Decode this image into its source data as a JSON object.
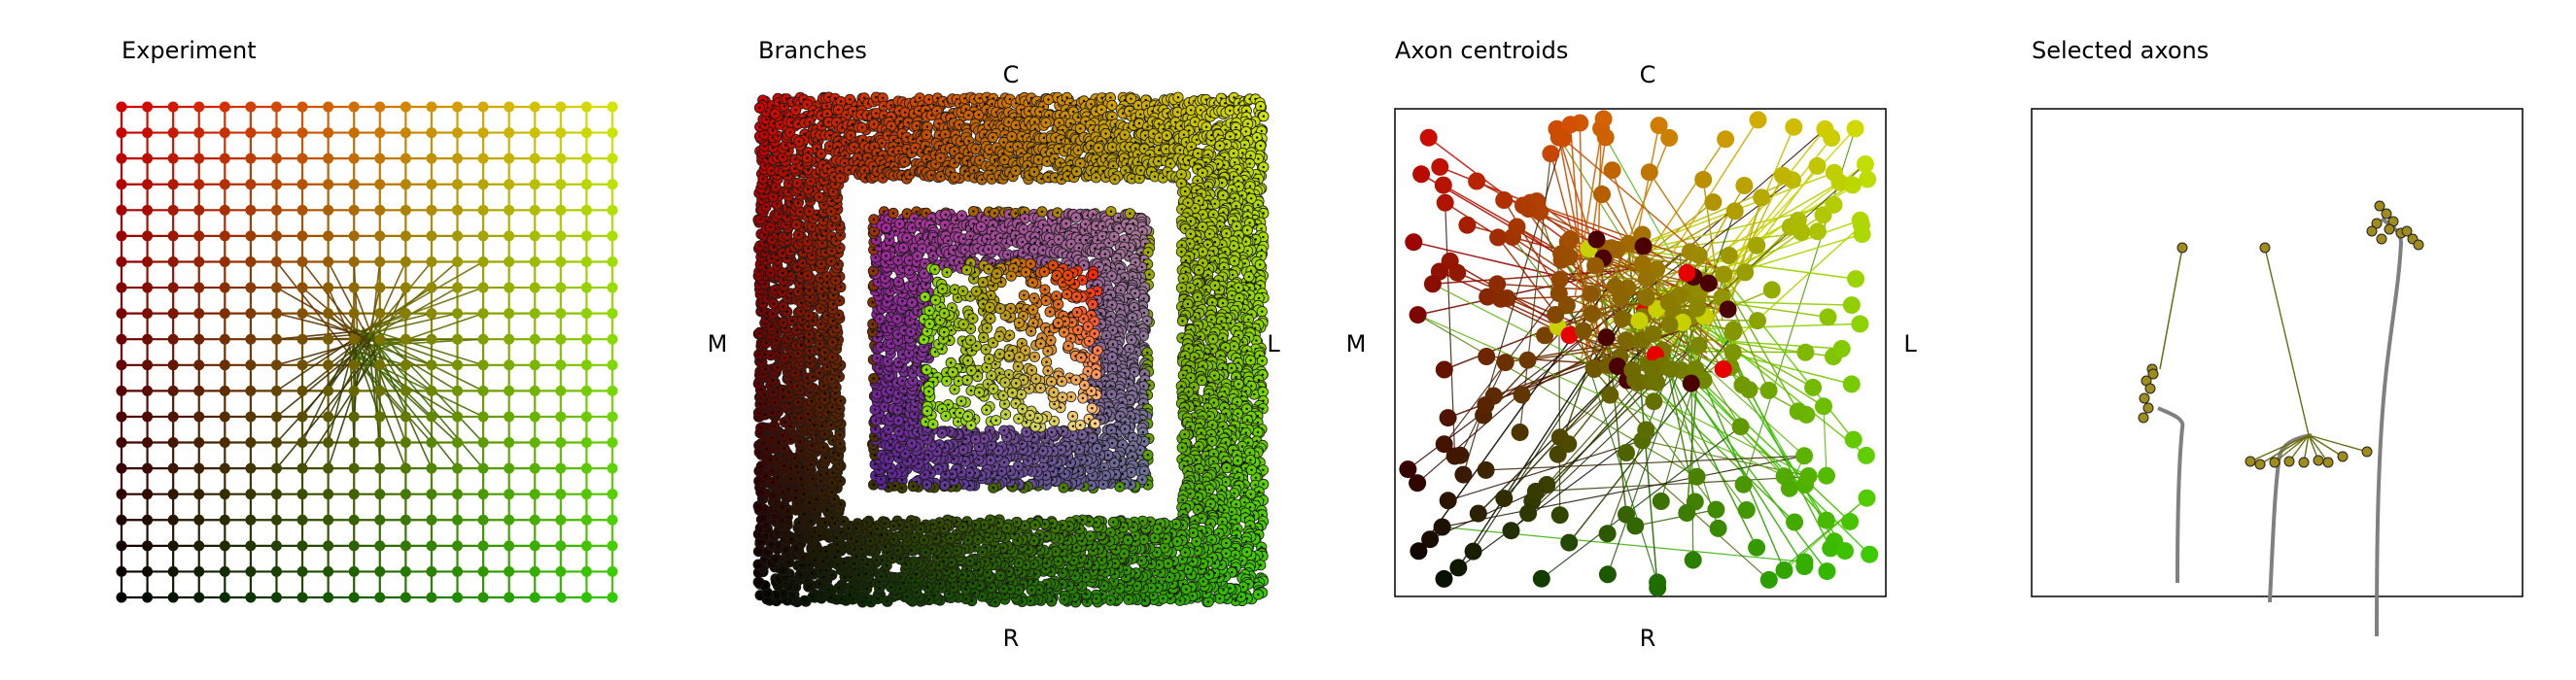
{
  "chart_data": [
    {
      "type": "scatter",
      "panel": "experiment",
      "title": "Experiment",
      "grid": {
        "rows": 20,
        "cols": 20
      },
      "inner_grid": {
        "rows": 9,
        "cols": 9,
        "row_range": [
          6,
          14
        ],
        "col_range": [
          6,
          14
        ]
      },
      "convergence_point": [
        0.5,
        0.5
      ],
      "colors": {
        "top_left": "#d40000",
        "top_right": "#d4e600",
        "bottom_left": "#000000",
        "bottom_right": "#33cc00"
      }
    },
    {
      "type": "scatter",
      "panel": "branches",
      "title": "Branches",
      "direction_labels": {
        "top": "C",
        "bottom": "R",
        "left": "M",
        "right": "L"
      },
      "pattern": "concentric-square-rings",
      "ring_count": 12,
      "center_colors": [
        "#ff0000",
        "#7a00ff",
        "#e6ff00"
      ]
    },
    {
      "type": "scatter",
      "panel": "axon-centroids",
      "title": "Axon centroids",
      "direction_labels": {
        "top": "C",
        "bottom": "R",
        "left": "M",
        "right": "L"
      },
      "frame": true,
      "node_count": 260
    },
    {
      "type": "scatter",
      "panel": "selected-axons",
      "title": "Selected axons",
      "frame": true,
      "axon_count": 3,
      "shaft_color": "#808080",
      "tip_color": "#a08c1a"
    }
  ]
}
